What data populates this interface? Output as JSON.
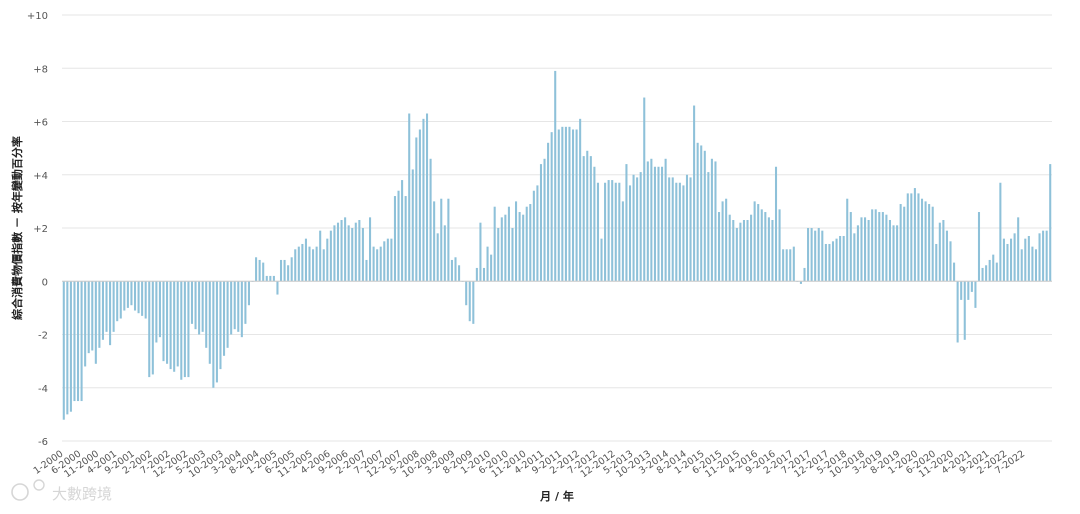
{
  "chart_data": {
    "type": "bar",
    "ylabel": "綜合消費物價指數 － 按年變動百分率",
    "xlabel": "月 / 年",
    "ylim": [
      -6,
      10
    ],
    "yticks": [
      -6,
      -4,
      -2,
      0,
      2,
      4,
      6,
      8,
      10
    ],
    "ytick_labels": [
      "-6",
      "-4",
      "-2",
      "0",
      "+2",
      "+4",
      "+6",
      "+8",
      "+10"
    ],
    "grid": true,
    "start": {
      "year": 2000,
      "month": 1
    },
    "xtick_labels": [
      "1-2000",
      "6-2000",
      "11-2000",
      "4-2001",
      "9-2001",
      "2-2002",
      "7-2002",
      "12-2002",
      "5-2003",
      "10-2003",
      "3-2004",
      "8-2004",
      "1-2005",
      "6-2005",
      "11-2005",
      "4-2006",
      "9-2006",
      "2-2007",
      "7-2007",
      "12-2007",
      "5-2008",
      "10-2008",
      "3-2009",
      "8-2009",
      "1-2010",
      "6-2010",
      "11-2010",
      "4-2011",
      "9-2011",
      "2-2012",
      "7-2012",
      "12-2012",
      "5-2013",
      "10-2013",
      "3-2014",
      "8-2014",
      "1-2015",
      "6-2015",
      "11-2015",
      "4-2016",
      "9-2016",
      "2-2017",
      "7-2017",
      "12-2017",
      "5-2018",
      "10-2018",
      "3-2019",
      "8-2019",
      "1-2020",
      "6-2020",
      "11-2020",
      "4-2021",
      "9-2021",
      "2-2022",
      "7-2022"
    ],
    "values": [
      -5.2,
      -5.0,
      -4.9,
      -4.5,
      -4.5,
      -4.5,
      -3.2,
      -2.7,
      -2.6,
      -3.1,
      -2.5,
      -2.2,
      -1.9,
      -2.4,
      -1.9,
      -1.5,
      -1.4,
      -1.1,
      -1.0,
      -0.9,
      -1.1,
      -1.2,
      -1.3,
      -1.4,
      -3.6,
      -3.5,
      -2.3,
      -2.1,
      -3.0,
      -3.1,
      -3.3,
      -3.4,
      -3.2,
      -3.7,
      -3.6,
      -3.6,
      -1.6,
      -1.8,
      -2.0,
      -1.9,
      -2.5,
      -3.1,
      -4.0,
      -3.8,
      -3.3,
      -2.8,
      -2.5,
      -2.0,
      -1.8,
      -1.9,
      -2.1,
      -1.6,
      -0.9,
      0.0,
      0.9,
      0.8,
      0.7,
      0.2,
      0.2,
      0.2,
      -0.5,
      0.8,
      0.8,
      0.6,
      0.9,
      1.2,
      1.3,
      1.4,
      1.6,
      1.3,
      1.2,
      1.3,
      1.9,
      1.2,
      1.6,
      1.9,
      2.1,
      2.2,
      2.3,
      2.4,
      2.1,
      2.0,
      2.2,
      2.3,
      2.0,
      0.8,
      2.4,
      1.3,
      1.2,
      1.3,
      1.5,
      1.6,
      1.6,
      3.2,
      3.4,
      3.8,
      3.2,
      6.3,
      4.2,
      5.4,
      5.7,
      6.1,
      6.3,
      4.6,
      3.0,
      1.8,
      3.1,
      2.1,
      3.1,
      0.8,
      0.9,
      0.6,
      0.0,
      -0.9,
      -1.5,
      -1.6,
      0.5,
      2.2,
      0.5,
      1.3,
      1.0,
      2.8,
      2.0,
      2.4,
      2.5,
      2.8,
      2.0,
      3.0,
      2.6,
      2.5,
      2.8,
      2.9,
      3.4,
      3.6,
      4.4,
      4.6,
      5.2,
      5.6,
      7.9,
      5.7,
      5.8,
      5.8,
      5.8,
      5.7,
      5.7,
      6.1,
      4.7,
      4.9,
      4.7,
      4.3,
      3.7,
      1.6,
      3.7,
      3.8,
      3.8,
      3.7,
      3.7,
      3.0,
      4.4,
      3.6,
      4.0,
      3.9,
      4.1,
      6.9,
      4.5,
      4.6,
      4.3,
      4.3,
      4.3,
      4.6,
      3.9,
      3.9,
      3.7,
      3.7,
      3.6,
      4.0,
      3.9,
      6.6,
      5.2,
      5.1,
      4.9,
      4.1,
      4.6,
      4.5,
      2.6,
      3.0,
      3.1,
      2.5,
      2.3,
      2.0,
      2.2,
      2.3,
      2.3,
      2.5,
      3.0,
      2.9,
      2.7,
      2.6,
      2.4,
      2.3,
      4.3,
      2.7,
      1.2,
      1.2,
      1.2,
      1.3,
      0.0,
      -0.1,
      0.5,
      2.0,
      2.0,
      1.9,
      2.0,
      1.9,
      1.4,
      1.4,
      1.5,
      1.6,
      1.7,
      1.7,
      3.1,
      2.6,
      1.8,
      2.1,
      2.4,
      2.4,
      2.3,
      2.7,
      2.7,
      2.6,
      2.6,
      2.5,
      2.3,
      2.1,
      2.1,
      2.9,
      2.8,
      3.3,
      3.3,
      3.5,
      3.3,
      3.1,
      3.0,
      2.9,
      2.8,
      1.4,
      2.2,
      2.3,
      1.9,
      1.5,
      0.7,
      -2.3,
      -0.7,
      -2.2,
      -0.7,
      -0.4,
      -1.0,
      2.6,
      0.5,
      0.6,
      0.8,
      1.0,
      0.7,
      3.7,
      1.6,
      1.4,
      1.6,
      1.8,
      2.4,
      1.2,
      1.6,
      1.7,
      1.3,
      1.2,
      1.8,
      1.9,
      1.9,
      4.4
    ]
  },
  "watermark": {
    "brand": "大數跨境"
  }
}
